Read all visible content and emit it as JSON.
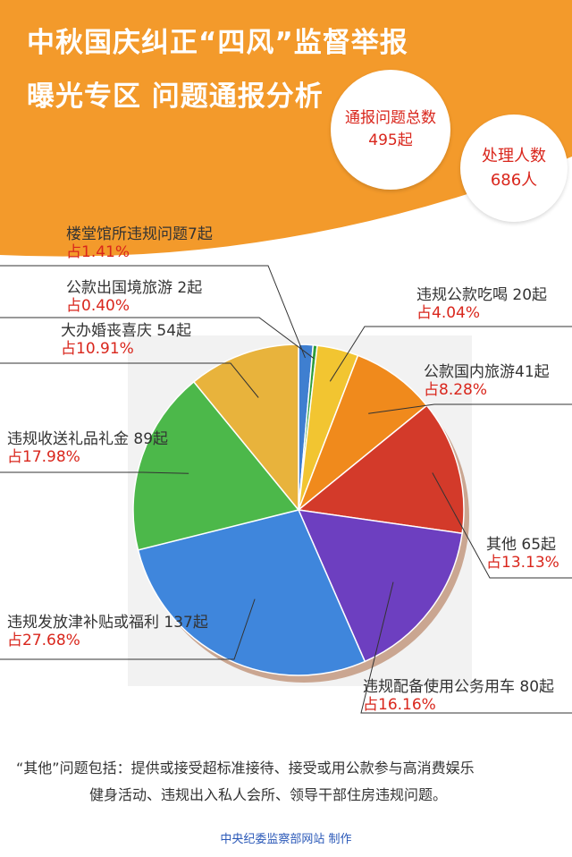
{
  "header": {
    "title_line1": "中秋国庆纠正“四风”监督举报",
    "title_line2": "曝光专区 问题通报分析",
    "bg_color": "#f39a2b"
  },
  "stats": {
    "total": {
      "label": "通报问题总数",
      "value": "495起"
    },
    "people": {
      "label": "处理人数",
      "value": "686人"
    }
  },
  "chart_data": {
    "type": "pie",
    "title": "",
    "total": 495,
    "slices": [
      {
        "label": "楼堂馆所违规问题7起",
        "name": "楼堂馆所违规问题",
        "count": 7,
        "percent_text": "占1.41%",
        "percent": 1.41,
        "color": "#3f7fd0"
      },
      {
        "label": "公款出国境旅游 2起",
        "name": "公款出国境旅游",
        "count": 2,
        "percent_text": "占0.40%",
        "percent": 0.4,
        "color": "#2f9e3a"
      },
      {
        "label": "违规公款吃喝 20起",
        "name": "违规公款吃喝",
        "count": 20,
        "percent_text": "占4.04%",
        "percent": 4.04,
        "color": "#f2c531"
      },
      {
        "label": "公款国内旅游41起",
        "name": "公款国内旅游",
        "count": 41,
        "percent_text": "占8.28%",
        "percent": 8.28,
        "color": "#f08a1c"
      },
      {
        "label": "其他 65起",
        "name": "其他",
        "count": 65,
        "percent_text": "占13.13%",
        "percent": 13.13,
        "color": "#d33a2a"
      },
      {
        "label": "违规配备使用公务用车 80起",
        "name": "违规配备使用公务用车",
        "count": 80,
        "percent_text": "占16.16%",
        "percent": 16.16,
        "color": "#6d3fc0"
      },
      {
        "label": "违规发放津补贴或福利 137起",
        "name": "违规发放津补贴或福利",
        "count": 137,
        "percent_text": "占27.68%",
        "percent": 27.68,
        "color": "#3f86dc"
      },
      {
        "label": "违规收送礼品礼金 89起",
        "name": "违规收送礼品礼金",
        "count": 89,
        "percent_text": "占17.98%",
        "percent": 17.98,
        "color": "#4cb84a"
      },
      {
        "label": "大办婚丧喜庆 54起",
        "name": "大办婚丧喜庆",
        "count": 54,
        "percent_text": "占10.91%",
        "percent": 10.91,
        "color": "#e8b33c"
      }
    ]
  },
  "note": {
    "line1": "“其他”问题包括：提供或接受超标准接待、接受或用公款参与高消费娱乐",
    "line2": "健身活动、违规出入私人会所、领导干部住房违规问题。"
  },
  "credit": "中央纪委监察部网站 制作"
}
